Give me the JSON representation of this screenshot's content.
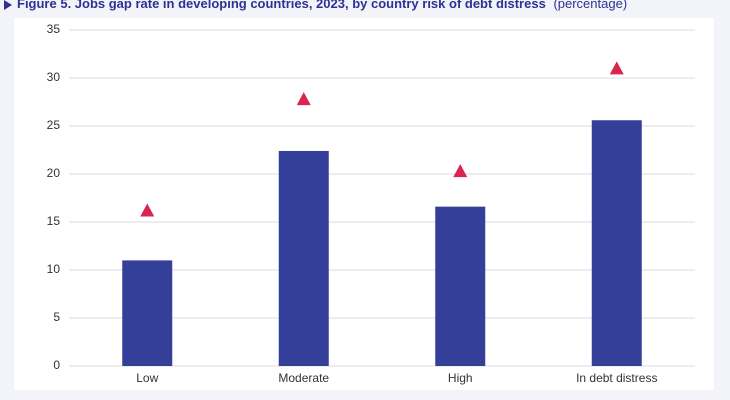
{
  "chart_data": {
    "type": "bar",
    "title": "Figure 5.  Jobs gap rate in developing countries, 2023, by country risk of debt distress",
    "subtitle": "(percentage)",
    "categories": [
      "Low",
      "Moderate",
      "High",
      "In debt distress"
    ],
    "series": [
      {
        "mark": "bar",
        "color": "#333f99",
        "values": [
          11.0,
          22.4,
          16.6,
          25.6
        ]
      },
      {
        "mark": "triangle",
        "color": "#d9254f",
        "values": [
          16.2,
          27.8,
          20.3,
          31.0
        ]
      }
    ],
    "ylim": [
      0,
      35
    ],
    "yticks": [
      0,
      5,
      10,
      15,
      20,
      25,
      30,
      35
    ],
    "grid": true
  }
}
